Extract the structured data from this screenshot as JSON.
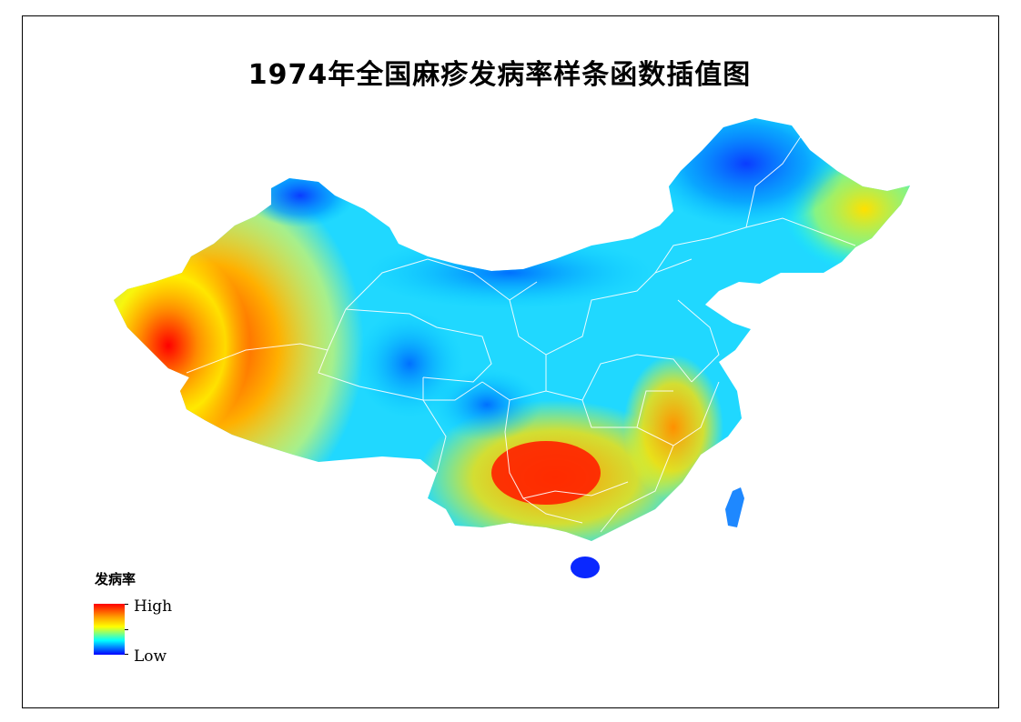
{
  "map": {
    "title": "1974年全国麻疹发病率样条函数插值图"
  },
  "legend": {
    "title": "发病率",
    "high_label": "High",
    "low_label": "Low",
    "ramp_colors": [
      "#ff0000",
      "#ff9a00",
      "#ffff00",
      "#00ffff",
      "#0000ff"
    ]
  }
}
